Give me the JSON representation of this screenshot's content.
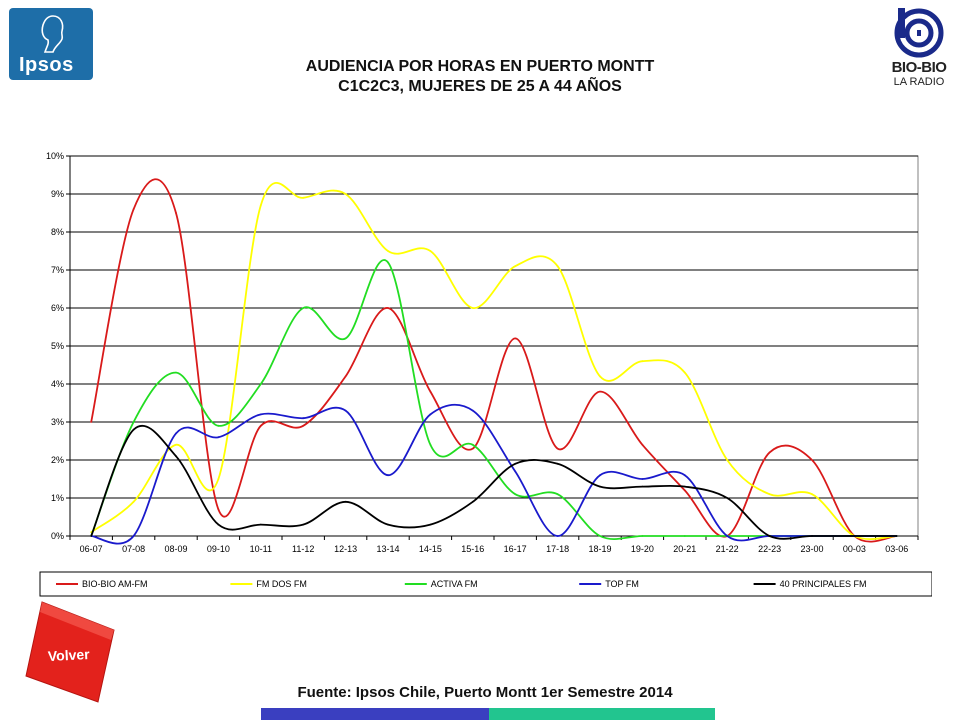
{
  "logos": {
    "left_brand": "Ipsos",
    "right_brand": "BIO-BIO",
    "right_sub": "LA RADIO"
  },
  "title": {
    "line1": "AUDIENCIA POR HORAS EN PUERTO MONTT",
    "line2": "C1C2C3, MUJERES DE 25 A 44 AÑOS"
  },
  "volver_label": "Volver",
  "footer": {
    "source": "Fuente: Ipsos Chile, Puerto Montt 1er Semestre 2014"
  },
  "colors": {
    "bar_blue": "#3a3fc0",
    "bar_teal": "#22c58f",
    "volver_red": "#e3221c",
    "ipsos_blue": "#1e6ea8"
  },
  "chart_data": {
    "type": "line",
    "title": "",
    "xlabel": "",
    "ylabel": "",
    "ylim": [
      0,
      10
    ],
    "y_tick_labels": [
      "0%",
      "1%",
      "2%",
      "3%",
      "4%",
      "5%",
      "6%",
      "7%",
      "8%",
      "9%",
      "10%"
    ],
    "grid": true,
    "legend_position": "bottom",
    "categories": [
      "06-07",
      "07-08",
      "08-09",
      "09-10",
      "10-11",
      "11-12",
      "12-13",
      "13-14",
      "14-15",
      "15-16",
      "16-17",
      "17-18",
      "18-19",
      "19-20",
      "20-21",
      "21-22",
      "22-23",
      "23-00",
      "00-03",
      "03-06"
    ],
    "series": [
      {
        "name": "BIO-BIO AM-FM",
        "color": "#d91a1a",
        "values": [
          3.0,
          8.6,
          8.5,
          0.7,
          2.9,
          2.9,
          4.2,
          6.0,
          3.8,
          2.3,
          5.2,
          2.3,
          3.8,
          2.4,
          1.2,
          0.0,
          2.2,
          2.0,
          0.0,
          0.0
        ]
      },
      {
        "name": "FM DOS FM",
        "color": "#ffff00",
        "values": [
          0.1,
          0.9,
          2.4,
          1.5,
          8.7,
          8.9,
          9.0,
          7.5,
          7.5,
          6.0,
          7.1,
          7.1,
          4.2,
          4.6,
          4.3,
          2.0,
          1.1,
          1.1,
          0.0,
          0.0
        ]
      },
      {
        "name": "ACTIVA FM",
        "color": "#22dd22",
        "values": [
          0.0,
          3.0,
          4.3,
          2.9,
          4.0,
          6.0,
          5.2,
          7.2,
          2.4,
          2.4,
          1.1,
          1.1,
          0.0,
          0.0,
          0.0,
          0.0,
          0.0,
          0.0,
          0.0,
          0.0
        ]
      },
      {
        "name": "TOP FM",
        "color": "#1a1acc",
        "values": [
          0.0,
          0.0,
          2.7,
          2.6,
          3.2,
          3.1,
          3.3,
          1.6,
          3.2,
          3.3,
          1.7,
          0.0,
          1.6,
          1.5,
          1.6,
          0.0,
          0.0,
          0.0,
          0.0,
          0.0
        ]
      },
      {
        "name": "40 PRINCIPALES FM",
        "color": "#000000",
        "values": [
          0.0,
          2.8,
          2.1,
          0.3,
          0.3,
          0.3,
          0.9,
          0.3,
          0.3,
          0.9,
          1.9,
          1.9,
          1.3,
          1.3,
          1.3,
          1.0,
          0.0,
          0.0,
          0.0,
          0.0
        ]
      }
    ]
  }
}
